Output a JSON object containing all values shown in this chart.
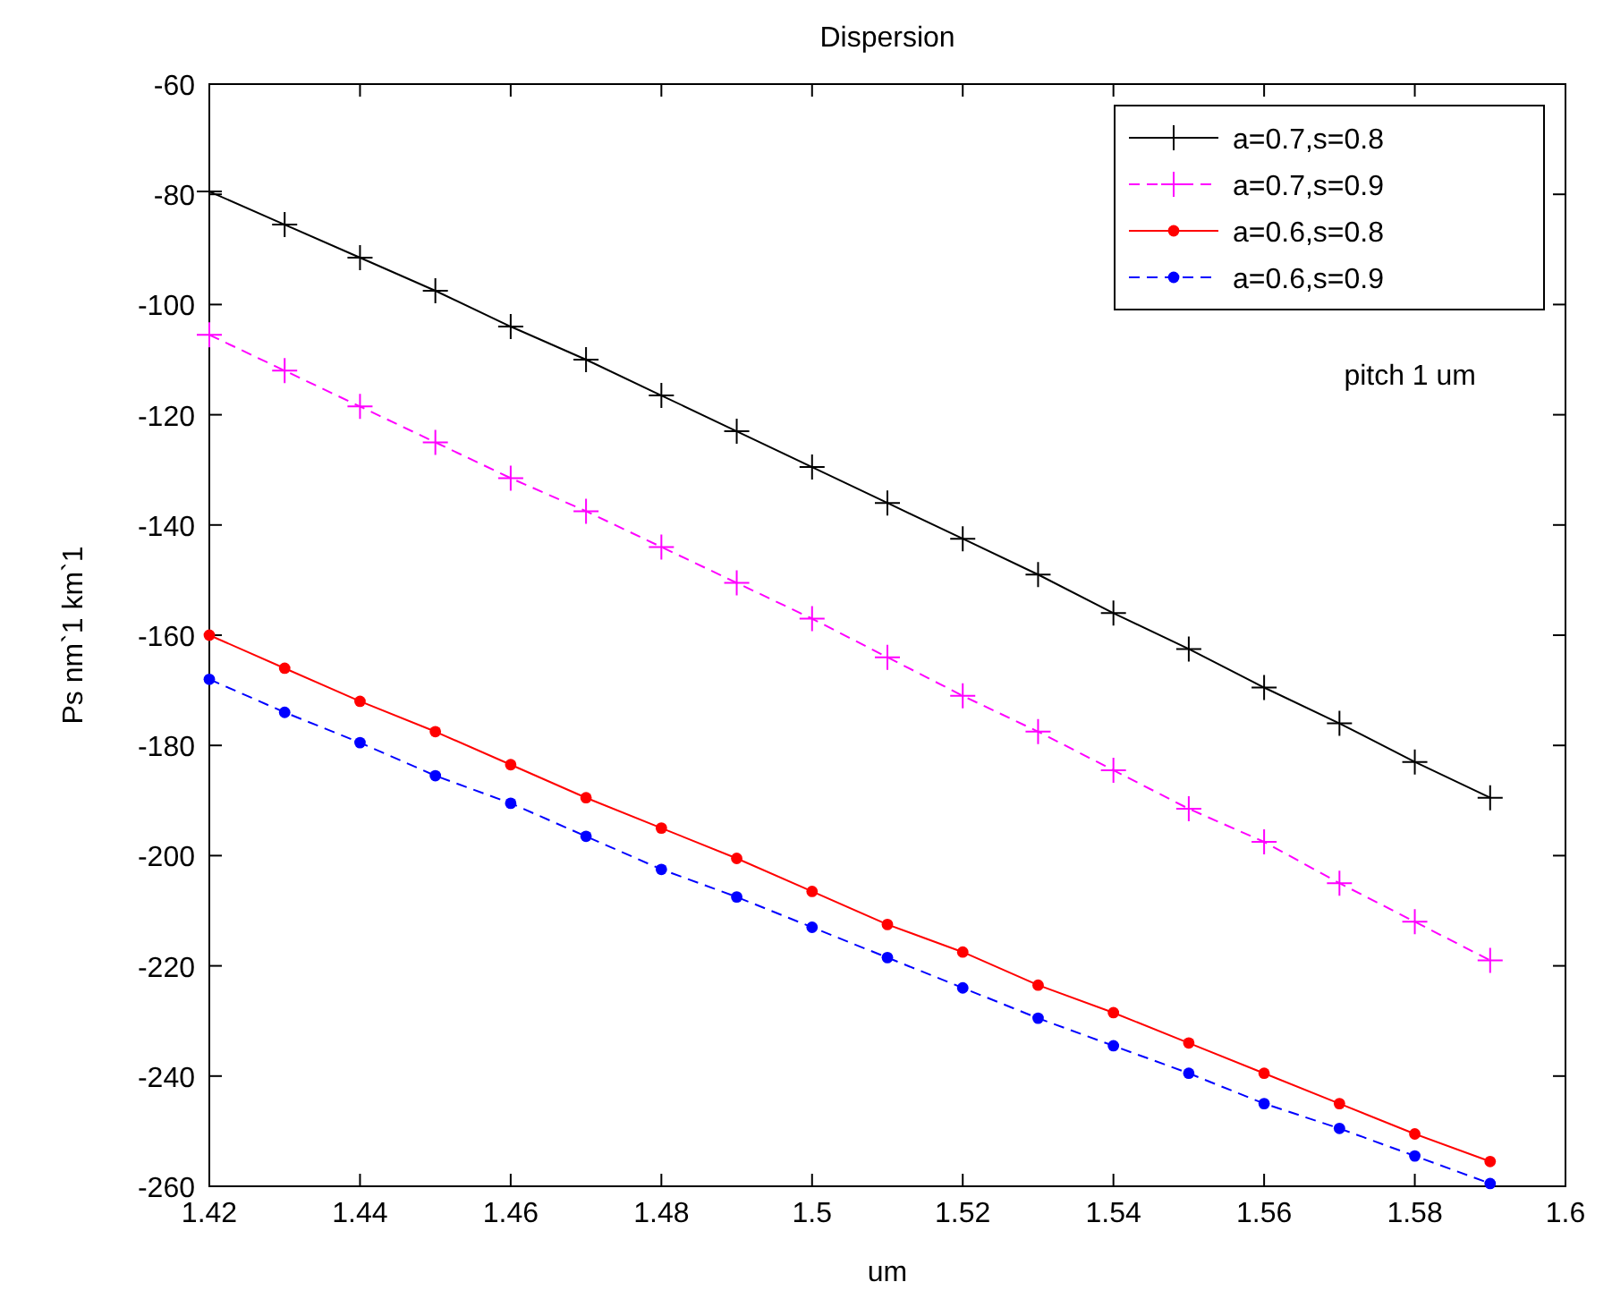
{
  "chart_data": {
    "type": "line",
    "title": "Dispersion",
    "xlabel": "um",
    "ylabel": "Ps nm`1 km`1",
    "x": [
      1.42,
      1.43,
      1.44,
      1.45,
      1.46,
      1.47,
      1.48,
      1.49,
      1.5,
      1.51,
      1.52,
      1.53,
      1.54,
      1.55,
      1.56,
      1.57,
      1.58,
      1.59
    ],
    "series": [
      {
        "name": "a=0.7,s=0.8",
        "color": "#000000",
        "marker": "cross",
        "line_style": "solid",
        "values": [
          -79.5,
          -85.5,
          -91.5,
          -97.5,
          -104,
          -110,
          -116.5,
          -123,
          -129.5,
          -136,
          -142.5,
          -149,
          -156,
          -162.5,
          -169.5,
          -176,
          -183,
          -189.5
        ]
      },
      {
        "name": "a=0.7,s=0.9",
        "color": "#ff00ff",
        "marker": "cross",
        "line_style": "dashed",
        "values": [
          -105.5,
          -112,
          -118.5,
          -125,
          -131.5,
          -137.5,
          -144,
          -150.5,
          -157,
          -164,
          -171,
          -177.5,
          -184.5,
          -191.5,
          -197.5,
          -205,
          -212,
          -219
        ]
      },
      {
        "name": "a=0.6,s=0.8",
        "color": "#ff0000",
        "marker": "circle",
        "line_style": "solid",
        "values": [
          -160,
          -166,
          -172,
          -177.5,
          -183.5,
          -189.5,
          -195,
          -200.5,
          -206.5,
          -212.5,
          -217.5,
          -223.5,
          -228.5,
          -234,
          -239.5,
          -245,
          -250.5,
          -255.5
        ]
      },
      {
        "name": "a=0.6,s=0.9",
        "color": "#0000ff",
        "marker": "circle",
        "line_style": "dashed",
        "values": [
          -168,
          -174,
          -179.5,
          -185.5,
          -190.5,
          -196.5,
          -202.5,
          -207.5,
          -213,
          -218.5,
          -224,
          -229.5,
          -234.5,
          -239.5,
          -245,
          -249.5,
          -254.5,
          -259.5
        ]
      }
    ],
    "xlim": [
      1.42,
      1.6
    ],
    "xticks": [
      1.42,
      1.44,
      1.46,
      1.48,
      1.5,
      1.52,
      1.54,
      1.56,
      1.58,
      1.6
    ],
    "ylim": [
      -260,
      -60
    ],
    "yticks": [
      -260,
      -240,
      -220,
      -200,
      -180,
      -160,
      -140,
      -120,
      -100,
      -80,
      -60
    ],
    "legend": "top right",
    "annotations": [
      "pitch 1 um"
    ]
  }
}
